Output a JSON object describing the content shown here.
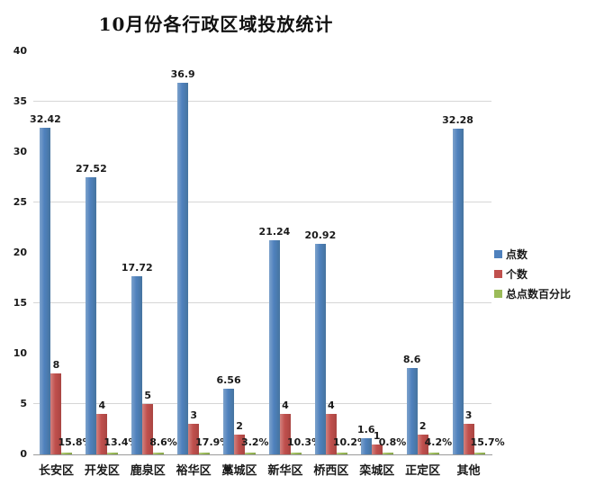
{
  "title": "10月份各行政区域投放统计",
  "chart_data": {
    "type": "bar",
    "title": "10月份各行政区域投放统计",
    "categories": [
      "长安区",
      "开发区",
      "鹿泉区",
      "裕华区",
      "藁城区",
      "新华区",
      "桥西区",
      "栾城区",
      "正定区",
      "其他"
    ],
    "series": [
      {
        "name": "点数",
        "color": "#4f81bd",
        "values": [
          32.42,
          27.52,
          17.72,
          36.9,
          6.56,
          21.24,
          20.92,
          1.6,
          8.6,
          32.28
        ],
        "labels": [
          "32.42",
          "27.52",
          "17.72",
          "36.9",
          "6.56",
          "21.24",
          "20.92",
          "1.6",
          "8.6",
          "32.28"
        ]
      },
      {
        "name": "个数",
        "color": "#c0504d",
        "values": [
          8,
          4,
          5,
          3,
          2,
          4,
          4,
          1,
          2,
          3
        ],
        "labels": [
          "8",
          "4",
          "5",
          "3",
          "2",
          "4",
          "4",
          "1",
          "2",
          "3"
        ]
      },
      {
        "name": "总点数百分比",
        "color": "#9bbb59",
        "values": [
          0.158,
          0.134,
          0.086,
          0.179,
          0.032,
          0.103,
          0.102,
          0.008,
          0.042,
          0.157
        ],
        "labels": [
          "15.8%",
          "13.4%",
          "8.6%",
          "17.9%",
          "3.2%",
          "10.3%",
          "10.2%",
          "0.8%",
          "4.2%",
          "15.7%"
        ]
      }
    ],
    "xlabel": "",
    "ylabel": "",
    "ylim": [
      0,
      40
    ],
    "yticks": [
      0,
      5,
      10,
      15,
      20,
      25,
      30,
      35,
      40
    ],
    "gridline_values": [
      5,
      15,
      25,
      35
    ],
    "grid": true,
    "legend_position": "right"
  },
  "colors": {
    "series_blue": "#4f81bd",
    "series_red": "#c0504d",
    "series_green": "#9bbb59",
    "gridline": "#d6d6d6",
    "axis": "#9a9a9a",
    "text": "#1a1a1a",
    "background": "#ffffff"
  }
}
